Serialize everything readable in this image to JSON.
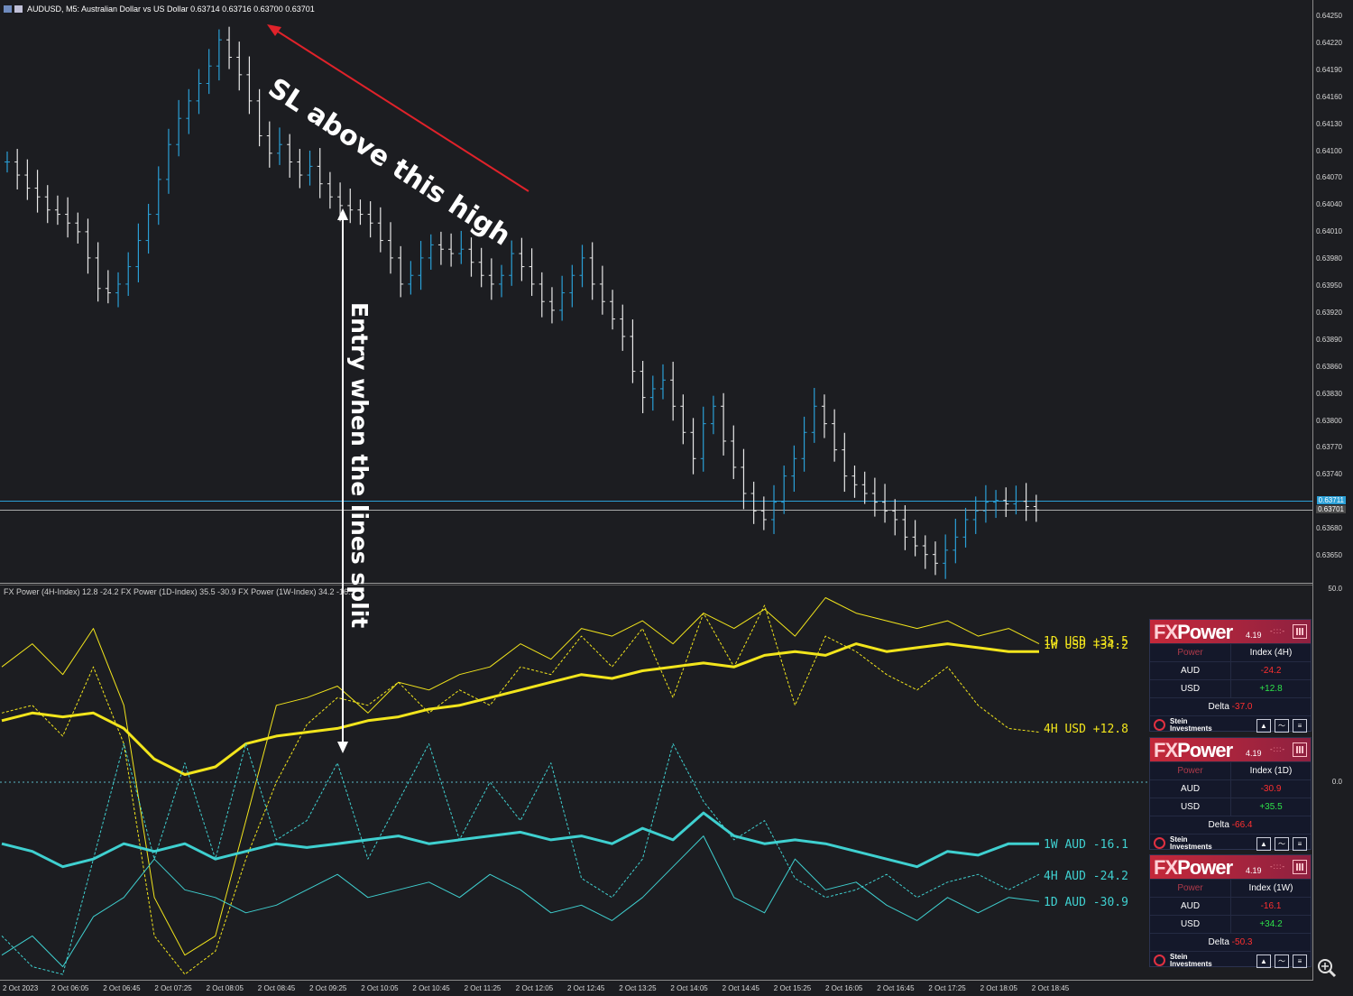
{
  "main_header": {
    "symbol_line": "AUDUSD, M5:  Australian Dollar vs US Dollar",
    "ohlc": "0.63714 0.63716 0.63700 0.63701"
  },
  "indicator_header": "FX Power (4H-Index) 12.8 -24.2 FX Power (1D-Index) 35.5 -30.9 FX Power (1W-Index) 34.2 -16.1",
  "annotations": {
    "sl_text": "SL above this high",
    "entry_text": "Entry when the lines split"
  },
  "price_axis": [
    "0.64250",
    "0.64220",
    "0.64190",
    "0.64160",
    "0.64130",
    "0.64100",
    "0.64070",
    "0.64040",
    "0.64010",
    "0.63980",
    "0.63950",
    "0.63920",
    "0.63890",
    "0.63860",
    "0.63830",
    "0.63800",
    "0.63770",
    "0.63740",
    "0.63680",
    "0.63650"
  ],
  "price_badges": {
    "bid": "0.63711",
    "last": "0.63701"
  },
  "indicator_axis": {
    "top": "50.0",
    "zero": "0.0"
  },
  "time_axis": [
    "2 Oct 2023",
    "2 Oct 06:05",
    "2 Oct 06:45",
    "2 Oct 07:25",
    "2 Oct 08:05",
    "2 Oct 08:45",
    "2 Oct 09:25",
    "2 Oct 10:05",
    "2 Oct 10:45",
    "2 Oct 11:25",
    "2 Oct 12:05",
    "2 Oct 12:45",
    "2 Oct 13:25",
    "2 Oct 14:05",
    "2 Oct 14:45",
    "2 Oct 15:25",
    "2 Oct 16:05",
    "2 Oct 16:45",
    "2 Oct 17:25",
    "2 Oct 18:05",
    "2 Oct 18:45"
  ],
  "line_labels": {
    "usd_1d": "1D USD +35.5",
    "usd_1w": "1W USD +34.2",
    "usd_4h": "4H USD +12.8",
    "aud_1w": "1W AUD -16.1",
    "aud_4h": "4H AUD -24.2",
    "aud_1d": "1D AUD -30.9"
  },
  "colors": {
    "usd": "#f2e51c",
    "aud": "#3fd0d0",
    "bull_candle": "#2a9fd6",
    "bear_candle": "#e8e8e8",
    "arrow": "#e0222a"
  },
  "panels": [
    {
      "brand_fx": "FX",
      "brand_power": "Power",
      "version": "4.19",
      "col_a": "Power",
      "col_b": "Index (4H)",
      "rows": [
        {
          "cur": "AUD",
          "val": "-24.2",
          "sign": "neg"
        },
        {
          "cur": "USD",
          "val": "+12.8",
          "sign": "pos"
        }
      ],
      "delta_label": "Delta",
      "delta_value": "-37.0",
      "brand_line1": "Stein",
      "brand_line2": "Investments"
    },
    {
      "brand_fx": "FX",
      "brand_power": "Power",
      "version": "4.19",
      "col_a": "Power",
      "col_b": "Index (1D)",
      "rows": [
        {
          "cur": "AUD",
          "val": "-30.9",
          "sign": "neg"
        },
        {
          "cur": "USD",
          "val": "+35.5",
          "sign": "pos"
        }
      ],
      "delta_label": "Delta",
      "delta_value": "-66.4",
      "brand_line1": "Stein",
      "brand_line2": "Investments"
    },
    {
      "brand_fx": "FX",
      "brand_power": "Power",
      "version": "4.19",
      "col_a": "Power",
      "col_b": "Index (1W)",
      "rows": [
        {
          "cur": "AUD",
          "val": "-16.1",
          "sign": "neg"
        },
        {
          "cur": "USD",
          "val": "+34.2",
          "sign": "pos"
        }
      ],
      "delta_label": "Delta",
      "delta_value": "-50.3",
      "brand_line1": "Stein",
      "brand_line2": "Investments"
    }
  ],
  "chart_data": [
    {
      "type": "candlestick",
      "title": "AUDUSD, M5",
      "ylim": [
        0.6363,
        0.64265
      ],
      "close_series": [
        0.641,
        0.64085,
        0.6407,
        0.6406,
        0.64045,
        0.6404,
        0.6403,
        0.6402,
        0.6399,
        0.63955,
        0.6395,
        0.6396,
        0.6398,
        0.6401,
        0.6404,
        0.6408,
        0.6412,
        0.6415,
        0.6417,
        0.6419,
        0.6421,
        0.6424,
        0.6422,
        0.642,
        0.6417,
        0.6413,
        0.6411,
        0.6412,
        0.641,
        0.64085,
        0.64095,
        0.64075,
        0.6406,
        0.6405,
        0.64045,
        0.6404,
        0.6403,
        0.6401,
        0.6399,
        0.6396,
        0.6397,
        0.6399,
        0.64005,
        0.64,
        0.63995,
        0.64,
        0.63985,
        0.6397,
        0.6396,
        0.6397,
        0.63995,
        0.6398,
        0.6396,
        0.6394,
        0.6393,
        0.6395,
        0.6397,
        0.6399,
        0.6396,
        0.6394,
        0.6392,
        0.639,
        0.6386,
        0.6383,
        0.6384,
        0.6385,
        0.6382,
        0.6379,
        0.6376,
        0.638,
        0.6382,
        0.6378,
        0.6375,
        0.6372,
        0.637,
        0.6369,
        0.6371,
        0.6374,
        0.6376,
        0.6379,
        0.6382,
        0.638,
        0.6377,
        0.6374,
        0.6373,
        0.6372,
        0.6371,
        0.637,
        0.6369,
        0.6367,
        0.6366,
        0.6365,
        0.6364,
        0.63655,
        0.6367,
        0.6369,
        0.637,
        0.6371,
        0.63712,
        0.63708,
        0.63711,
        0.63705,
        0.63701
      ]
    },
    {
      "type": "line",
      "title": "FX Power",
      "ylim": [
        -50,
        50
      ],
      "series": [
        {
          "name": "1D USD",
          "values": [
            30,
            36,
            28,
            40,
            20,
            -30,
            -45,
            -40,
            -10,
            20,
            22,
            25,
            18,
            26,
            24,
            28,
            30,
            36,
            32,
            40,
            38,
            42,
            36,
            44,
            40,
            45,
            38,
            48,
            44,
            42,
            40,
            42,
            38,
            40,
            36
          ]
        },
        {
          "name": "1W USD",
          "values": [
            16,
            18,
            17,
            18,
            14,
            6,
            2,
            4,
            10,
            12,
            13,
            14,
            16,
            17,
            19,
            20,
            22,
            24,
            26,
            28,
            27,
            29,
            30,
            31,
            30,
            33,
            34,
            33,
            36,
            34,
            35,
            36,
            35,
            34,
            34
          ]
        },
        {
          "name": "4H USD",
          "values": [
            18,
            20,
            12,
            30,
            10,
            -40,
            -50,
            -44,
            -20,
            0,
            15,
            22,
            20,
            26,
            18,
            24,
            20,
            30,
            28,
            38,
            30,
            40,
            22,
            44,
            30,
            46,
            20,
            38,
            34,
            28,
            24,
            30,
            20,
            14,
            13
          ]
        },
        {
          "name": "1W AUD",
          "values": [
            -16,
            -18,
            -22,
            -20,
            -16,
            -18,
            -16,
            -20,
            -18,
            -16,
            -17,
            -16,
            -15,
            -14,
            -16,
            -15,
            -14,
            -13,
            -15,
            -14,
            -16,
            -12,
            -15,
            -8,
            -14,
            -16,
            -15,
            -16,
            -18,
            -20,
            -22,
            -18,
            -19,
            -16,
            -16
          ]
        },
        {
          "name": "4H AUD",
          "values": [
            -40,
            -48,
            -50,
            -20,
            10,
            -20,
            5,
            -20,
            10,
            -15,
            -10,
            5,
            -20,
            -5,
            10,
            -15,
            0,
            -10,
            5,
            -25,
            -30,
            -20,
            10,
            -5,
            -15,
            -10,
            -25,
            -30,
            -28,
            -24,
            -30,
            -26,
            -24,
            -28,
            -24
          ]
        },
        {
          "name": "1D AUD",
          "values": [
            -45,
            -40,
            -48,
            -35,
            -30,
            -20,
            -28,
            -30,
            -34,
            -32,
            -28,
            -24,
            -30,
            -28,
            -26,
            -30,
            -24,
            -28,
            -34,
            -32,
            -36,
            -30,
            -22,
            -14,
            -30,
            -34,
            -20,
            -28,
            -26,
            -32,
            -36,
            -30,
            -34,
            -30,
            -31
          ]
        }
      ]
    }
  ]
}
